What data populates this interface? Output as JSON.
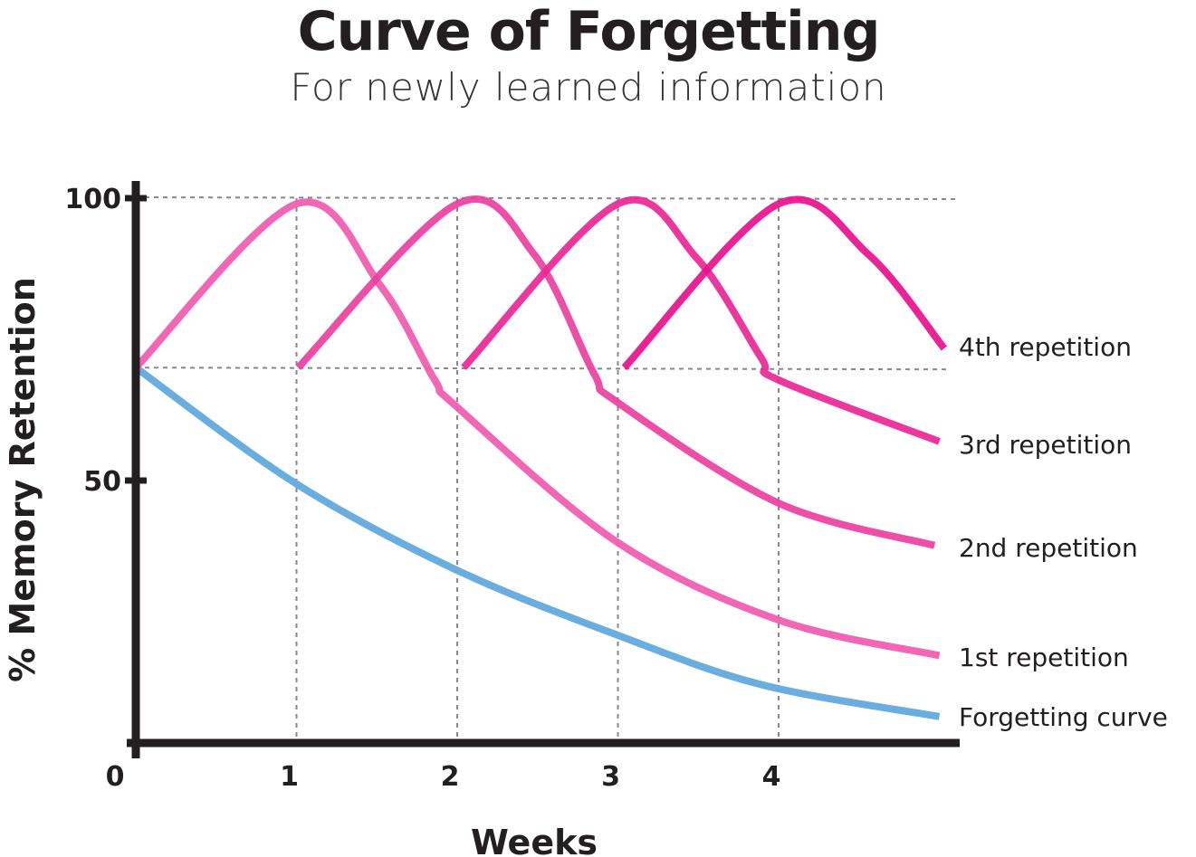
{
  "chart_data": {
    "type": "line",
    "title": "Curve of Forgetting",
    "subtitle": "For newly learned information",
    "xlabel": "Weeks",
    "ylabel": "% Memory Retention",
    "xlim": [
      0,
      5
    ],
    "ylim": [
      0,
      100
    ],
    "x_ticks": [
      "0",
      "1",
      "2",
      "3",
      "4"
    ],
    "y_ticks": [
      "50",
      "100"
    ],
    "grid": "dotted reference lines at weeks 1-4 and at 70% and 100%",
    "legend": "labels at right end of each line",
    "series": [
      {
        "name": "Forgetting curve",
        "color": "#6aaee0",
        "x": [
          0,
          1,
          2,
          3,
          3.9,
          5
        ],
        "y": [
          70,
          49.4,
          34.1,
          22.6,
          13.8,
          8.2
        ]
      },
      {
        "name": "1st repetition",
        "color": "#f15aaf",
        "x": [
          0,
          1,
          1.52,
          1.86,
          2,
          3,
          4,
          5
        ],
        "y": [
          70,
          99,
          84.6,
          67.8,
          63,
          39,
          25.3,
          19
        ]
      },
      {
        "name": "2nd repetition",
        "color": "#ec3f9f",
        "x": [
          1.01,
          2,
          2.48,
          2.85,
          3,
          4,
          4.97
        ],
        "y": [
          70,
          99,
          90,
          69,
          63.8,
          46,
          38.5
        ]
      },
      {
        "name": "3rd repetition",
        "color": "#ea2796",
        "x": [
          2.04,
          3,
          3.49,
          3.89,
          4,
          5
        ],
        "y": [
          70,
          99,
          89.4,
          71.8,
          67.8,
          56.9
        ]
      },
      {
        "name": "4th repetition",
        "color": "#e8108e",
        "x": [
          3.04,
          4,
          4.56,
          5.03
        ],
        "y": [
          70,
          99,
          90,
          73.4
        ]
      }
    ]
  }
}
